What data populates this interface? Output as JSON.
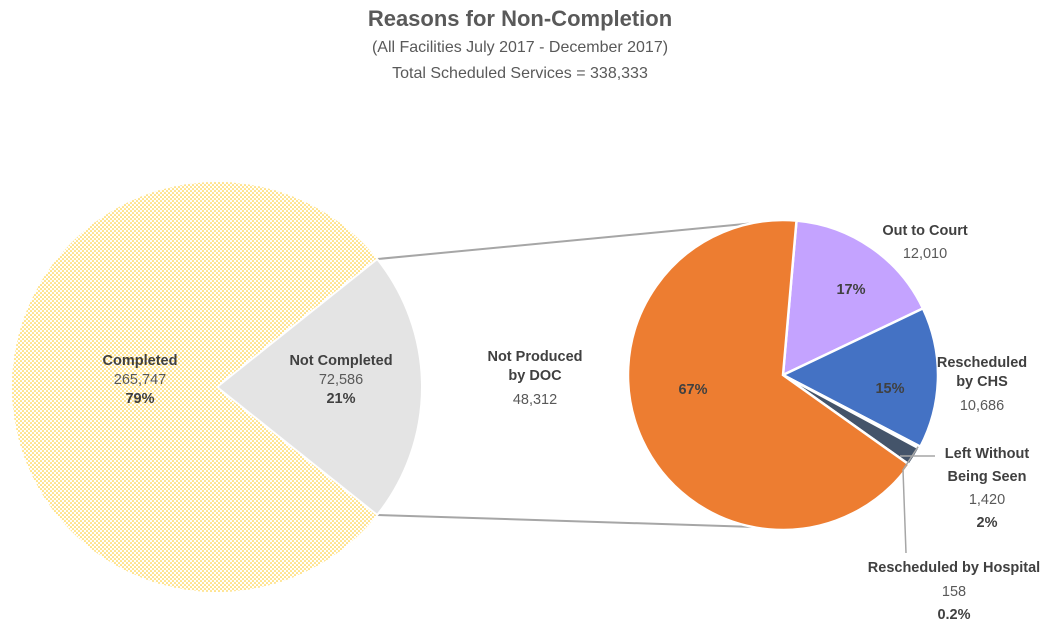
{
  "chart_data": {
    "type": "pie",
    "title": "Reasons for Non-Completion",
    "subtitle": "(All Facilities July 2017 - December 2017)",
    "total_line": "Total Scheduled Services = 338,333",
    "main_pie": [
      {
        "name": "Completed",
        "value": 265747,
        "value_label": "265,747",
        "percent_label": "79%",
        "color": "#ffc000"
      },
      {
        "name": "Not Completed",
        "value": 72586,
        "value_label": "72,586",
        "percent_label": "21%",
        "color": "#e4e4e4"
      }
    ],
    "breakdown_pie": [
      {
        "name": "Not Produced by DOC",
        "name_lines": [
          "Not Produced",
          "by DOC"
        ],
        "value": 48312,
        "value_label": "48,312",
        "percent_label": "67%",
        "color": "#ed7d31"
      },
      {
        "name": "Out to Court",
        "name_lines": [
          "Out to Court"
        ],
        "value": 12010,
        "value_label": "12,010",
        "percent_label": "17%",
        "color": "#c4a3ff"
      },
      {
        "name": "Rescheduled by CHS",
        "name_lines": [
          "Rescheduled",
          "by CHS"
        ],
        "value": 10686,
        "value_label": "10,686",
        "percent_label": "15%",
        "color": "#4472c4"
      },
      {
        "name": "Left Without Being Seen",
        "name_lines": [
          "Left Without",
          "Being Seen"
        ],
        "value": 1420,
        "value_label": "1,420",
        "percent_label": "2%",
        "color": "#44546a"
      },
      {
        "name": "Rescheduled by Hospital",
        "name_lines": [
          "Rescheduled by Hospital"
        ],
        "value": 158,
        "value_label": "158",
        "percent_label": "0.2%",
        "color": "#a5a5a5"
      }
    ]
  }
}
